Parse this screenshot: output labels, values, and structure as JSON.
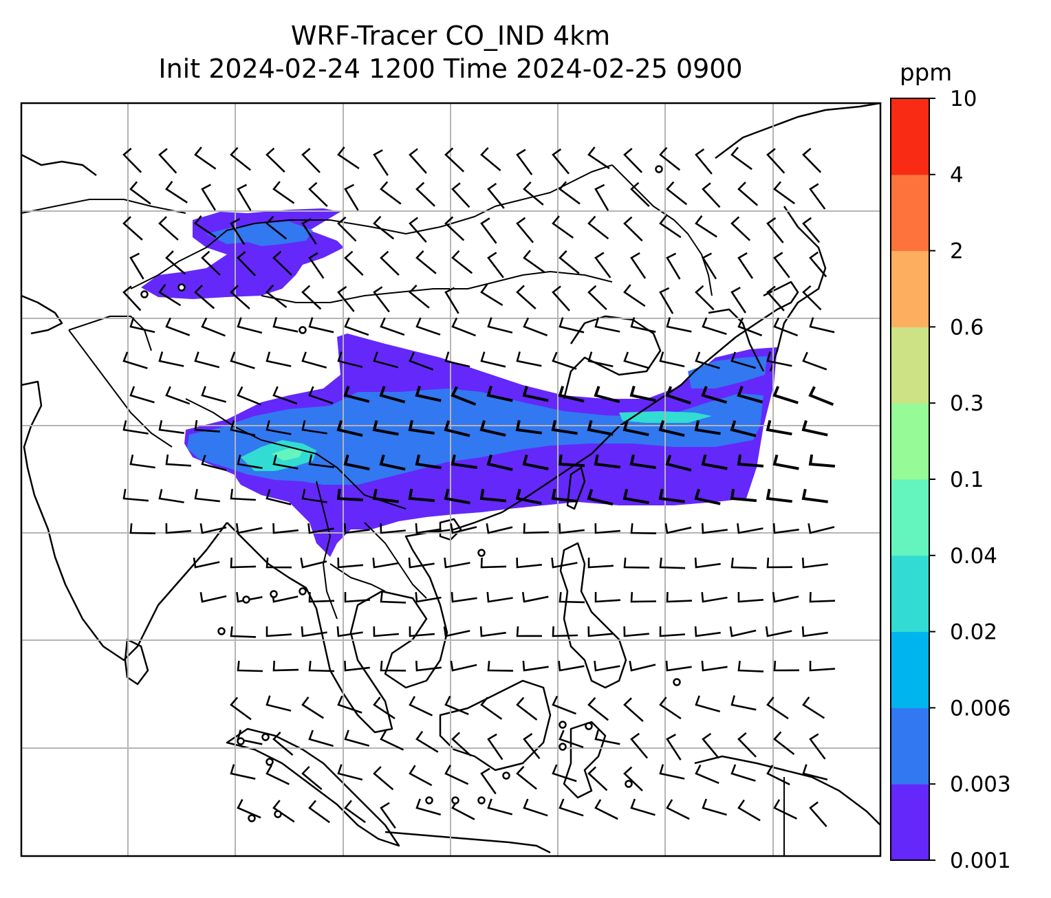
{
  "title": {
    "line1": "WRF-Tracer CO_IND 4km",
    "line2": "Init 2024-02-24 1200 Time 2024-02-25 0900"
  },
  "colorbar": {
    "units": "ppm",
    "levels": [
      "0.001",
      "0.003",
      "0.006",
      "0.02",
      "0.04",
      "0.1",
      "0.3",
      "0.6",
      "2",
      "4",
      "10"
    ],
    "colors": [
      "#6428fa",
      "#3278f0",
      "#00b4ee",
      "#32dcd2",
      "#64f5be",
      "#96fa96",
      "#cde185",
      "#fdaf5f",
      "#fd733b",
      "#fa2b14"
    ]
  },
  "map": {
    "plume_colors": {
      "low": "#6428fa",
      "mid": "#3278f0",
      "high": "#32dcd2",
      "peak": "#64f5be"
    },
    "gridline_color": "#b4b4b4",
    "calm_wind_symbol": "circle"
  }
}
